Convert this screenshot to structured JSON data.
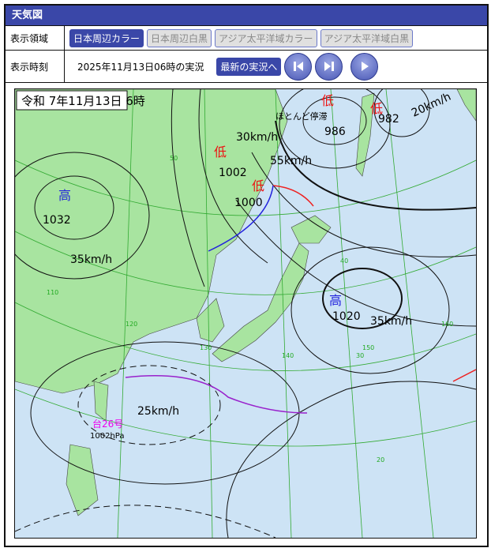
{
  "header": {
    "title": "天気図"
  },
  "area": {
    "label": "表示領域",
    "options": [
      {
        "label": "日本周辺カラー",
        "selected": true
      },
      {
        "label": "日本周辺白黒",
        "selected": false
      },
      {
        "label": "アジア太平洋域カラー",
        "selected": false
      },
      {
        "label": "アジア太平洋域白黒",
        "selected": false
      }
    ]
  },
  "time": {
    "label": "表示時刻",
    "value": "2025年11月13日06時の実況",
    "latest_label": "最新の実況へ",
    "controls": [
      {
        "icon": "skip-first-icon"
      },
      {
        "icon": "skip-next-icon"
      },
      {
        "icon": "play-icon"
      }
    ]
  },
  "map": {
    "title": "令和 7年11月13日 6時",
    "colors": {
      "sea": "#cde3f5",
      "land": "#a8e4a0",
      "warm_front": "#ee2222",
      "cold_front": "#2222dd",
      "low": "#ee1111",
      "typhoon": "#ee00ee"
    },
    "systems": [
      {
        "type": "高",
        "pressure": "1032",
        "motion": "35km/h"
      },
      {
        "type": "低",
        "pressure": "1002",
        "motion": "30km/h"
      },
      {
        "type": "低",
        "pressure": "1000",
        "motion": "55km/h"
      },
      {
        "type": "低",
        "pressure": "986",
        "motion": "ほとんど停滞"
      },
      {
        "type": "低",
        "pressure": "982",
        "motion": "20km/h"
      },
      {
        "type": "高",
        "pressure": "1020",
        "motion": "35km/h"
      },
      {
        "type": "台26号",
        "pressure": "1002hPa",
        "motion": "25km/h"
      }
    ],
    "grid_labels": [
      "50",
      "40",
      "30",
      "20",
      "140",
      "150",
      "160",
      "130",
      "120",
      "110"
    ]
  }
}
